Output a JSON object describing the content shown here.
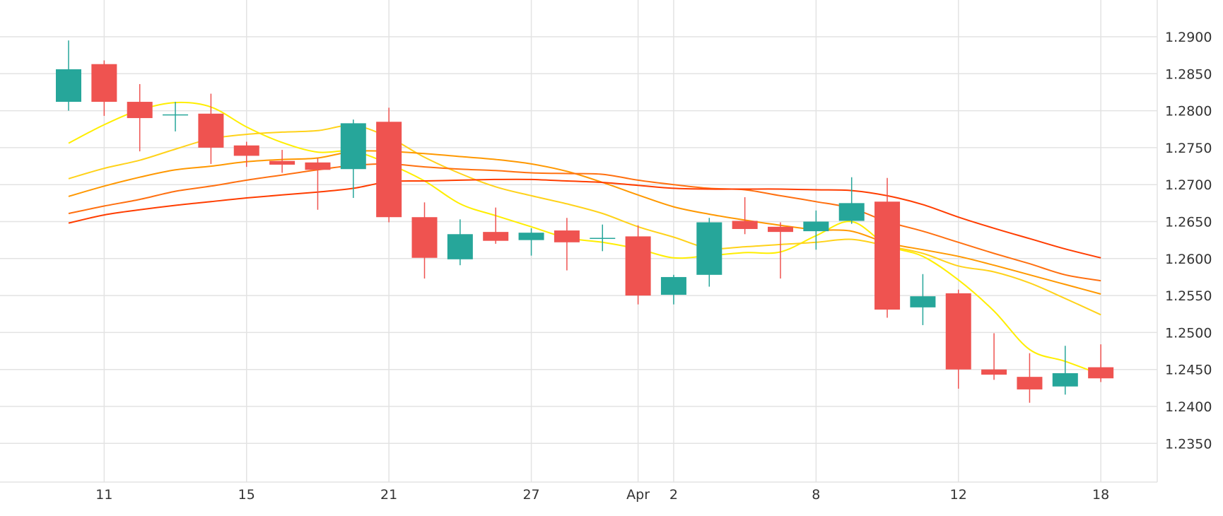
{
  "chart_data": {
    "type": "candlestick",
    "x_tick_labels": [
      {
        "index": 1,
        "label": "11"
      },
      {
        "index": 5,
        "label": "15"
      },
      {
        "index": 9,
        "label": "21"
      },
      {
        "index": 13,
        "label": "27"
      },
      {
        "index": 16,
        "label": "Apr"
      },
      {
        "index": 17,
        "label": "2"
      },
      {
        "index": 21,
        "label": "8"
      },
      {
        "index": 25,
        "label": "12"
      },
      {
        "index": 29,
        "label": "18"
      }
    ],
    "y_ticks": [
      "1.2900",
      "1.2850",
      "1.2800",
      "1.2750",
      "1.2700",
      "1.2650",
      "1.2600",
      "1.2550",
      "1.2500",
      "1.2450",
      "1.2400",
      "1.2350"
    ],
    "ylim": [
      1.2293,
      1.2948
    ],
    "grid": true,
    "candles": [
      {
        "open": 1.2812,
        "high": 1.2895,
        "low": 1.28,
        "close": 1.2856
      },
      {
        "open": 1.2863,
        "high": 1.2868,
        "low": 1.2793,
        "close": 1.2812
      },
      {
        "open": 1.2812,
        "high": 1.2836,
        "low": 1.2745,
        "close": 1.279
      },
      {
        "open": 1.2795,
        "high": 1.2812,
        "low": 1.2772,
        "close": 1.2795
      },
      {
        "open": 1.2796,
        "high": 1.2823,
        "low": 1.2728,
        "close": 1.275
      },
      {
        "open": 1.2753,
        "high": 1.2758,
        "low": 1.2724,
        "close": 1.2739
      },
      {
        "open": 1.2732,
        "high": 1.2747,
        "low": 1.2716,
        "close": 1.2727
      },
      {
        "open": 1.273,
        "high": 1.2736,
        "low": 1.2666,
        "close": 1.272
      },
      {
        "open": 1.2721,
        "high": 1.2788,
        "low": 1.2682,
        "close": 1.2783
      },
      {
        "open": 1.2785,
        "high": 1.2804,
        "low": 1.2649,
        "close": 1.2656
      },
      {
        "open": 1.2656,
        "high": 1.2676,
        "low": 1.2573,
        "close": 1.2601
      },
      {
        "open": 1.2599,
        "high": 1.2653,
        "low": 1.2591,
        "close": 1.2633
      },
      {
        "open": 1.2636,
        "high": 1.2669,
        "low": 1.262,
        "close": 1.2624
      },
      {
        "open": 1.2625,
        "high": 1.2641,
        "low": 1.2604,
        "close": 1.2635
      },
      {
        "open": 1.2638,
        "high": 1.2655,
        "low": 1.2584,
        "close": 1.2622
      },
      {
        "open": 1.2628,
        "high": 1.2646,
        "low": 1.261,
        "close": 1.2628
      },
      {
        "open": 1.263,
        "high": 1.2645,
        "low": 1.2538,
        "close": 1.255
      },
      {
        "open": 1.2551,
        "high": 1.2578,
        "low": 1.2538,
        "close": 1.2575
      },
      {
        "open": 1.2578,
        "high": 1.2655,
        "low": 1.2562,
        "close": 1.2649
      },
      {
        "open": 1.2651,
        "high": 1.2683,
        "low": 1.2633,
        "close": 1.264
      },
      {
        "open": 1.2643,
        "high": 1.2649,
        "low": 1.2573,
        "close": 1.2636
      },
      {
        "open": 1.2637,
        "high": 1.2665,
        "low": 1.2612,
        "close": 1.265
      },
      {
        "open": 1.2651,
        "high": 1.271,
        "low": 1.2647,
        "close": 1.2675
      },
      {
        "open": 1.2677,
        "high": 1.2709,
        "low": 1.252,
        "close": 1.2531
      },
      {
        "open": 1.2534,
        "high": 1.2579,
        "low": 1.251,
        "close": 1.2549
      },
      {
        "open": 1.2553,
        "high": 1.2558,
        "low": 1.2424,
        "close": 1.245
      },
      {
        "open": 1.245,
        "high": 1.2499,
        "low": 1.2436,
        "close": 1.2443
      },
      {
        "open": 1.244,
        "high": 1.2472,
        "low": 1.2405,
        "close": 1.2423
      },
      {
        "open": 1.2427,
        "high": 1.2482,
        "low": 1.2416,
        "close": 1.2445
      },
      {
        "open": 1.2453,
        "high": 1.2484,
        "low": 1.2433,
        "close": 1.2438
      }
    ],
    "series": [
      {
        "color": "#ffee00",
        "values": [
          1.2756,
          1.2781,
          1.2801,
          1.2811,
          1.2805,
          1.2778,
          1.2757,
          1.2744,
          1.2745,
          1.2728,
          1.2705,
          1.2674,
          1.2658,
          1.2643,
          1.2628,
          1.2622,
          1.2613,
          1.2601,
          1.2604,
          1.2608,
          1.2609,
          1.2631,
          1.265,
          1.2618,
          1.2603,
          1.2571,
          1.2529,
          1.2477,
          1.2461,
          1.2443
        ]
      },
      {
        "color": "#ffd21a",
        "values": [
          1.2708,
          1.2722,
          1.2733,
          1.2748,
          1.2762,
          1.2768,
          1.2771,
          1.2773,
          1.278,
          1.2764,
          1.2737,
          1.2715,
          1.2697,
          1.2685,
          1.2674,
          1.2661,
          1.2643,
          1.2629,
          1.2614,
          1.2616,
          1.2619,
          1.2622,
          1.2626,
          1.2617,
          1.2607,
          1.259,
          1.2582,
          1.2567,
          1.2546,
          1.2524
        ]
      },
      {
        "color": "#ff9800",
        "values": [
          1.2684,
          1.2698,
          1.271,
          1.272,
          1.2725,
          1.2731,
          1.2734,
          1.2736,
          1.2745,
          1.2745,
          1.2742,
          1.2738,
          1.2734,
          1.2728,
          1.2718,
          1.2703,
          1.2686,
          1.267,
          1.266,
          1.2652,
          1.2645,
          1.2639,
          1.2637,
          1.2621,
          1.2612,
          1.2603,
          1.2591,
          1.2578,
          1.2565,
          1.2552
        ]
      },
      {
        "color": "#ff7010",
        "values": [
          1.2661,
          1.2671,
          1.268,
          1.2691,
          1.2698,
          1.2706,
          1.2713,
          1.272,
          1.2726,
          1.2728,
          1.2724,
          1.2721,
          1.2719,
          1.2716,
          1.2715,
          1.2714,
          1.2706,
          1.27,
          1.2695,
          1.2693,
          1.2685,
          1.2677,
          1.2668,
          1.265,
          1.2637,
          1.2622,
          1.2607,
          1.2593,
          1.2578,
          1.257
        ]
      },
      {
        "color": "#ff3d00",
        "values": [
          1.2648,
          1.2659,
          1.2666,
          1.2672,
          1.2677,
          1.2682,
          1.2686,
          1.269,
          1.2695,
          1.2704,
          1.2705,
          1.2706,
          1.2707,
          1.2707,
          1.2705,
          1.2703,
          1.2699,
          1.2695,
          1.2694,
          1.2694,
          1.2694,
          1.2693,
          1.2692,
          1.2685,
          1.2673,
          1.2656,
          1.2641,
          1.2627,
          1.2613,
          1.2601
        ]
      }
    ],
    "colors": {
      "up": "#26a69a",
      "down": "#ef5350",
      "grid": "#e3e3e3",
      "label": "#333333"
    }
  }
}
